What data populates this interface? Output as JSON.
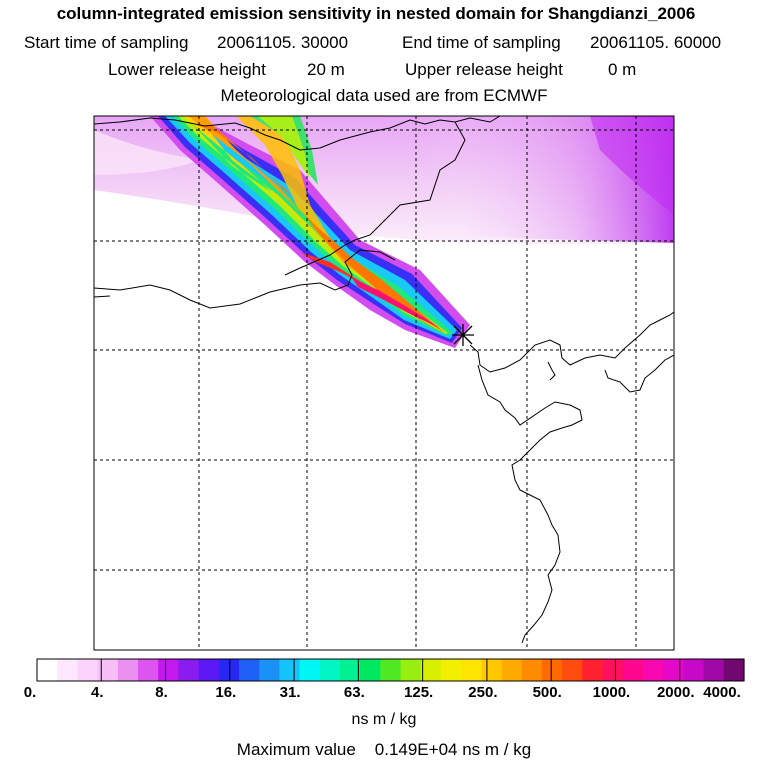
{
  "title": "column-integrated emission sensitivity in nested domain for Shangdianzi_2006",
  "sampling": {
    "start_label": "Start time of sampling",
    "start_value": "20061105. 30000",
    "end_label": "End time of sampling",
    "end_value": "20061105. 60000"
  },
  "release": {
    "lower_label": "Lower release height",
    "lower_value": "20 m",
    "upper_label": "Upper release height",
    "upper_value": "0 m"
  },
  "meteo_note": "Meteorological data used are from ECMWF",
  "colorbar": {
    "ticks": [
      "0.",
      "4.",
      "8.",
      "16.",
      "31.",
      "63.",
      "125.",
      "250.",
      "500.",
      "1000.",
      "2000.",
      "4000."
    ],
    "units": "ns m / kg",
    "colors": [
      "#ffffff",
      "#fde8fd",
      "#fad4fa",
      "#f6bff6",
      "#e98ff0",
      "#dd55ee",
      "#c418f0",
      "#8a1cf0",
      "#5c18f5",
      "#2828f5",
      "#1e60f5",
      "#1a92f5",
      "#14c4f8",
      "#00f5f5",
      "#00f5c5",
      "#00f092",
      "#00e860",
      "#50e820",
      "#98ee10",
      "#d8f000",
      "#f0f000",
      "#ffe400",
      "#ffc800",
      "#ffaa00",
      "#ff8c00",
      "#ff6a00",
      "#ff4a10",
      "#ff2030",
      "#ff1060",
      "#ff0890",
      "#f808b0",
      "#e408c8",
      "#c808c8",
      "#a008a8",
      "#700870"
    ]
  },
  "max_value": {
    "label": "Maximum value",
    "value": "0.149E+04",
    "units": "ns m / kg"
  },
  "station": {
    "name": "Shangdianzi",
    "marker": "x-cross"
  }
}
